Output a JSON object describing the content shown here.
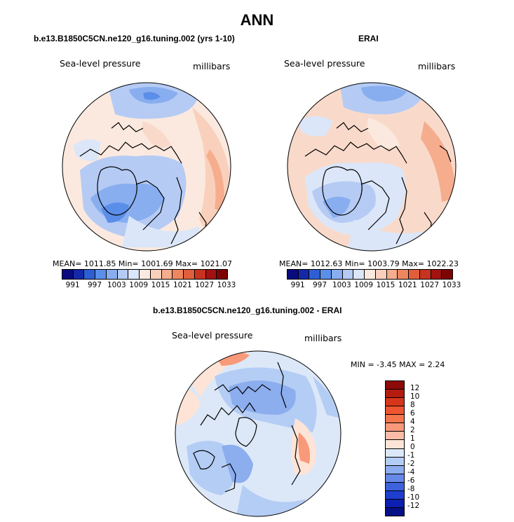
{
  "title": "ANN",
  "panels": {
    "model": {
      "title": "b.e13.B1850C5CN.ne120_g16.tuning.002 (yrs 1-10)",
      "variable": "Sea-level pressure",
      "units": "millibars",
      "stats": "MEAN= 1011.85   Min= 1001.69   Max= 1021.07"
    },
    "obs": {
      "title": "ERAI",
      "variable": "Sea-level pressure",
      "units": "millibars",
      "stats": "MEAN= 1012.63   Min= 1003.79   Max= 1022.23"
    },
    "diff": {
      "title": "b.e13.B1850C5CN.ne120_g16.tuning.002 - ERAI",
      "variable": "Sea-level pressure",
      "units": "millibars",
      "stats": "MIN =   -3.45 MAX =    2.24"
    }
  },
  "colorbar_abs": {
    "ticks": [
      "991",
      "997",
      "1003",
      "1009",
      "1015",
      "1021",
      "1027",
      "1033"
    ],
    "colors": [
      "#0a0a80",
      "#1528a8",
      "#2e5fd2",
      "#5b8ee8",
      "#88aef0",
      "#b5cbf4",
      "#dbe6f8",
      "#fbe9df",
      "#f9d0bc",
      "#f5ad8e",
      "#ee8660",
      "#e15e3b",
      "#c83320",
      "#a21210",
      "#7d0404"
    ]
  },
  "colorbar_diff": {
    "ticks": [
      "12",
      "10",
      "8",
      "6",
      "4",
      "2",
      "1",
      "0",
      "-1",
      "-2",
      "-4",
      "-6",
      "-8",
      "-10",
      "-12"
    ],
    "colors": [
      "#8c0a08",
      "#b41c10",
      "#d8361c",
      "#ee5530",
      "#f5754d",
      "#f8997a",
      "#fabca6",
      "#fde4d7",
      "#dce8f8",
      "#b4cdf5",
      "#8cadee",
      "#6688e6",
      "#3e62dc",
      "#1e3ed0",
      "#0c1fb0",
      "#061086"
    ]
  }
}
